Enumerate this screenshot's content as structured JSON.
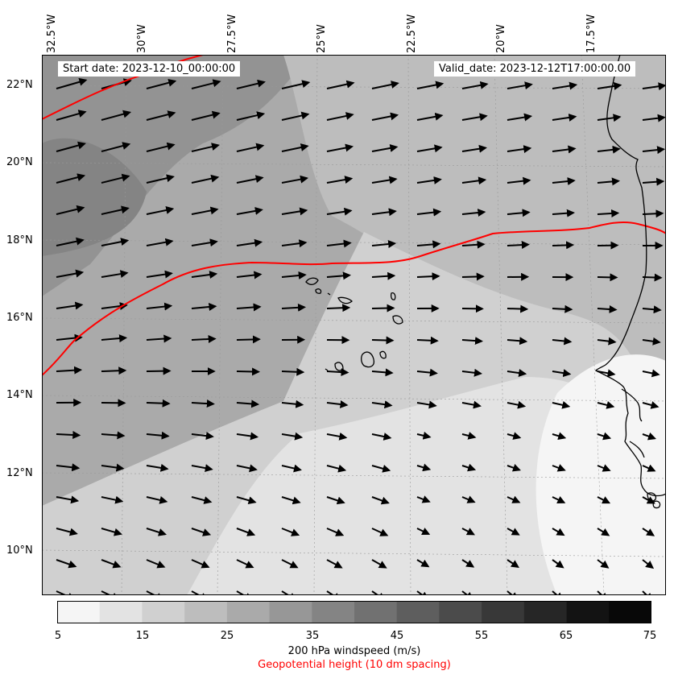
{
  "map": {
    "start_date": "Start date: 2023-12-10_00:00:00",
    "valid_date": "Valid_date: 2023-12-12T17:00:00.00",
    "lon_labels": [
      "32.5°W",
      "30°W",
      "27.5°W",
      "25°W",
      "22.5°W",
      "20°W",
      "17.5°W"
    ],
    "lat_labels": [
      "22°N",
      "20°N",
      "18°N",
      "16°N",
      "14°N",
      "12°N",
      "10°N"
    ],
    "contour_color": "#ff0000",
    "coastline_color": "#000000"
  },
  "colorbar": {
    "ticks": [
      "5",
      "15",
      "25",
      "35",
      "45",
      "55",
      "65",
      "75"
    ],
    "colors": [
      "#f5f5f5",
      "#e3e3e3",
      "#d0d0d0",
      "#bdbdbd",
      "#aaaaaa",
      "#979797",
      "#848484",
      "#717171",
      "#5e5e5e",
      "#4b4b4b",
      "#383838",
      "#262626",
      "#131313",
      "#080808"
    ],
    "label": "200 hPa windspeed (m/s)",
    "sublabel": "Geopotential height (10 dm spacing)",
    "sublabel_color": "#ff0000"
  }
}
